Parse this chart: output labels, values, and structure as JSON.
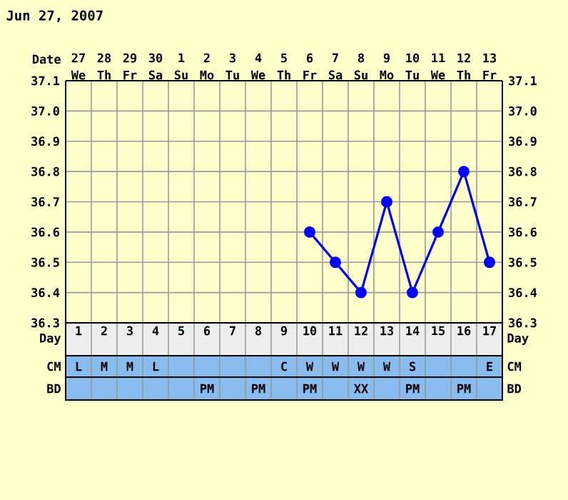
{
  "chart_data": {
    "type": "line",
    "title": "Jun 27, 2007",
    "categories": [
      "27 We",
      "28 Th",
      "29 Fr",
      "30 Sa",
      "1 Su",
      "2 Mo",
      "3 Tu",
      "4 We",
      "5 Th",
      "6 Fr",
      "7 Sa",
      "8 Su",
      "9 Mo",
      "10 Tu",
      "11 We",
      "12 Th",
      "13 Fr"
    ],
    "series": [
      {
        "color": "#0000ff",
        "values": [
          null,
          null,
          null,
          null,
          null,
          null,
          null,
          null,
          null,
          36.6,
          36.5,
          36.4,
          36.7,
          36.4,
          36.6,
          36.8,
          36.5
        ]
      }
    ],
    "x2lim": [
      0.5,
      17.5
    ],
    "x2ticks": [
      1,
      2,
      3,
      4,
      5,
      6,
      7,
      8,
      9,
      10,
      11,
      12,
      13,
      14,
      15,
      16,
      17
    ],
    "ylim": [
      36.3,
      37.1
    ],
    "yticks": [
      36.3,
      36.4,
      36.5,
      36.6,
      36.7,
      36.8,
      36.9,
      {
        "value": 37,
        "label": "37.0"
      },
      37.1
    ],
    "y2lim": [
      36.3,
      37.1
    ],
    "y2ticks": [
      36.3,
      36.4,
      36.5,
      36.6,
      36.7,
      36.8,
      36.9,
      {
        "value": 37,
        "label": "37.0"
      },
      37.1
    ],
    "grid": true,
    "marker": "circle",
    "line_style": "solid",
    "annotations": [
      "Date",
      "Day",
      "CM",
      "L",
      "M",
      "M",
      "L",
      null,
      null,
      null,
      null,
      "C",
      "W",
      "W",
      "W",
      "W",
      "S",
      null,
      null,
      "E",
      "BD",
      null,
      null,
      null,
      null,
      null,
      "PM",
      null,
      "PM",
      null,
      "PM",
      null,
      "XX",
      null,
      "PM",
      null,
      "PM",
      null
    ]
  }
}
